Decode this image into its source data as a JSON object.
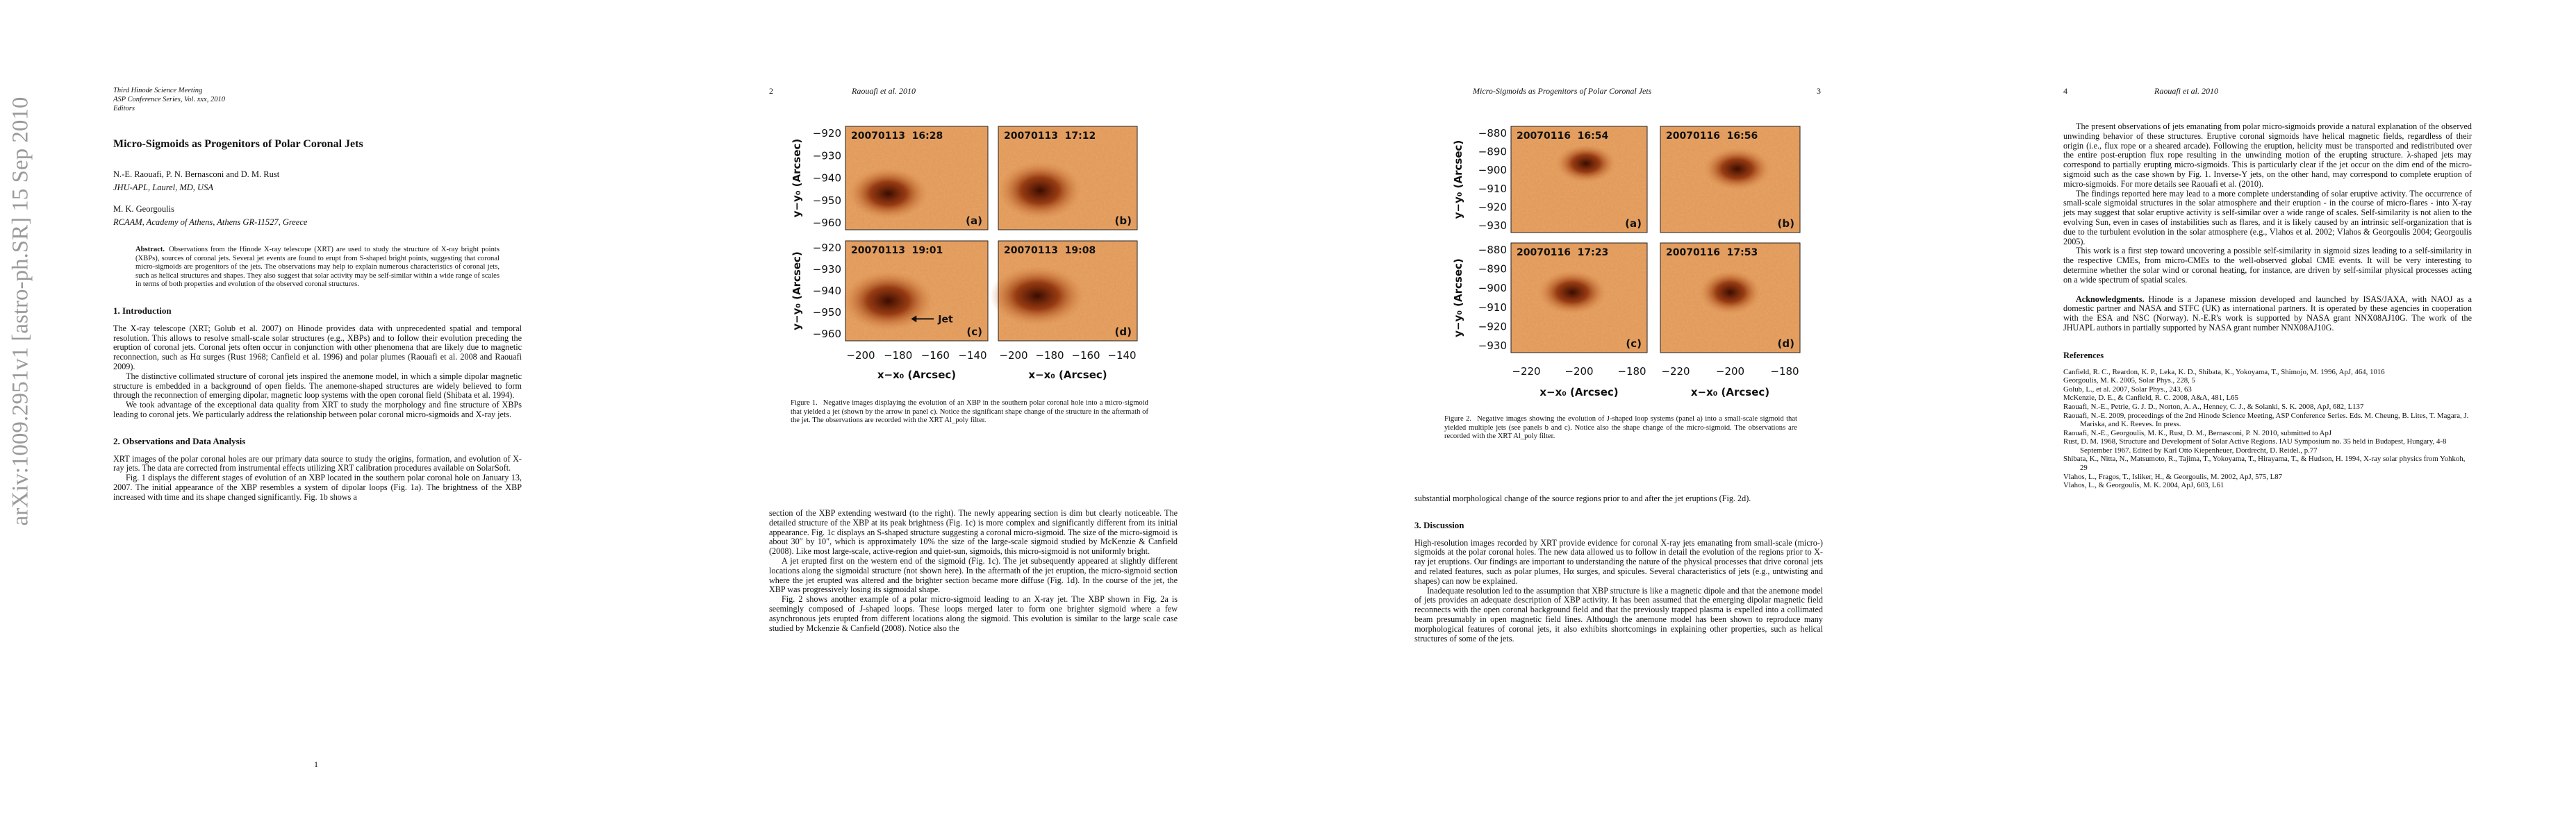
{
  "stamp": "arXiv:1009.2951v1  [astro-ph.SR]  15 Sep 2010",
  "pages": [
    {
      "conference": [
        "Third Hinode Science Meeting",
        "ASP Conference Series, Vol. xxx, 2010",
        "Editors"
      ],
      "blocks": [
        {
          "kind": "title",
          "text": "Micro-Sigmoids as Progenitors of Polar Coronal Jets"
        },
        {
          "kind": "author",
          "text": "N.-E. Raouafi, P. N. Bernasconi and D. M. Rust"
        },
        {
          "kind": "affil",
          "text": "JHU-APL, Laurel, MD, USA"
        },
        {
          "kind": "author2",
          "text": "M. K. Georgoulis"
        },
        {
          "kind": "affil",
          "text": "RCAAM, Academy of Athens, Athens GR-11527, Greece"
        },
        {
          "kind": "abstract",
          "lead": "Abstract.",
          "text": "Observations from the Hinode X-ray telescope (XRT) are used to study the structure of X-ray bright points (XBPs), sources of coronal jets. Several jet events are found to erupt from S-shaped bright points, suggesting that coronal micro-sigmoids are progenitors of the jets. The observations may help to explain numerous characteristics of coronal jets, such as helical structures and shapes. They also suggest that solar activity may be self-similar within a wide range of scales in terms of both properties and evolution of the observed coronal structures."
        },
        {
          "kind": "h",
          "text": "1. Introduction"
        },
        {
          "kind": "p0",
          "text": "The X-ray telescope (XRT; Golub et al. 2007) on Hinode provides data with unprecedented spatial and temporal resolution. This allows to resolve small-scale solar structures (e.g., XBPs) and to follow their evolution preceding the eruption of coronal jets. Coronal jets often occur in conjunction with other phenomena that are likely due to magnetic reconnection, such as Hα surges (Rust 1968; Canfield et al. 1996) and polar plumes (Raouafi et al. 2008 and Raouafi 2009)."
        },
        {
          "kind": "p",
          "text": "The distinctive collimated structure of coronal jets inspired the anemone model, in which a simple dipolar magnetic structure is embedded in a background of open fields. The anemone-shaped structures are widely believed to form through the reconnection of emerging dipolar, magnetic loop systems with the open coronal field (Shibata et al. 1994)."
        },
        {
          "kind": "p",
          "text": "We took advantage of the exceptional data quality from XRT to study the morphology and fine structure of XBPs leading to coronal jets. We particularly address the relationship between polar coronal micro-sigmoids and X-ray jets."
        },
        {
          "kind": "h",
          "text": "2. Observations and Data Analysis"
        },
        {
          "kind": "p0",
          "text": "XRT images of the polar coronal holes are our primary data source to study the origins, formation, and evolution of X-ray jets. The data are corrected from instrumental effects utilizing XRT calibration procedures available on SolarSoft."
        },
        {
          "kind": "p",
          "text": "Fig. 1 displays the different stages of evolution of an XBP located in the southern polar coronal hole on January 13, 2007. The initial appearance of the XBP resembles a system of dipolar loops (Fig. 1a). The brightness of the XBP increased with time and its shape changed significantly. Fig. 1b shows a"
        }
      ],
      "footer": "1"
    },
    {
      "running_head": {
        "number": "2",
        "text": "Raouafi et al. 2010"
      },
      "figure": {
        "panels": [
          {
            "stamp": "20070113  16:28",
            "letter": "(a)"
          },
          {
            "stamp": "20070113  17:12",
            "letter": "(b)"
          },
          {
            "stamp": "20070113  19:01",
            "letter": "(c)"
          },
          {
            "stamp": "20070113  19:08",
            "letter": "(d)"
          }
        ],
        "yticks": [
          "−920",
          "−930",
          "−940",
          "−950",
          "−960"
        ],
        "xticks": [
          "−200",
          "−180",
          "−160",
          "−140"
        ],
        "ylabel": "y−y₀ (Arcsec)",
        "xlabel": "x−x₀ (Arcsec)",
        "arrow_label": "Jet",
        "caption_label": "Figure 1.",
        "caption": "Negative images displaying the evolution of an XBP in the southern polar coronal hole into a micro-sigmoid that yielded a jet (shown by the arrow in panel c). Notice the significant shape change of the structure in the aftermath of the jet. The observations are recorded with the XRT Al_poly filter."
      },
      "blocks": [
        {
          "kind": "p0",
          "text": "section of the XBP extending westward (to the right). The newly appearing section is dim but clearly noticeable. The detailed structure of the XBP at its peak brightness (Fig. 1c) is more complex and significantly different from its initial appearance. Fig. 1c displays an S-shaped structure suggesting a coronal micro-sigmoid. The size of the micro-sigmoid is about 30″ by 10″, which is approximately 10% the size of the large-scale sigmoid studied by McKenzie & Canfield (2008). Like most large-scale, active-region and quiet-sun, sigmoids, this micro-sigmoid is not uniformly bright."
        },
        {
          "kind": "p",
          "text": "A jet erupted first on the western end of the sigmoid (Fig. 1c). The jet subsequently appeared at slightly different locations along the sigmoidal structure (not shown here). In the aftermath of the jet eruption, the micro-sigmoid section where the jet erupted was altered and the brighter section became more diffuse (Fig. 1d). In the course of the jet, the XBP was progressively losing its sigmoidal shape."
        },
        {
          "kind": "p",
          "text": "Fig. 2 shows another example of a polar micro-sigmoid leading to an X-ray jet. The XBP shown in Fig. 2a is seemingly composed of J-shaped loops. These loops merged later to form one brighter sigmoid where a few asynchronous jets erupted from different locations along the sigmoid. This evolution is similar to the large scale case studied by Mckenzie & Canfield (2008). Notice also the"
        }
      ]
    },
    {
      "running_head": {
        "number": "3",
        "text": "Micro-Sigmoids as Progenitors of Polar Coronal Jets"
      },
      "figure": {
        "panels": [
          {
            "stamp": "20070116  16:54",
            "letter": "(a)"
          },
          {
            "stamp": "20070116  16:56",
            "letter": "(b)"
          },
          {
            "stamp": "20070116  17:23",
            "letter": "(c)"
          },
          {
            "stamp": "20070116  17:53",
            "letter": "(d)"
          }
        ],
        "yticks": [
          "−880",
          "−890",
          "−900",
          "−910",
          "−920",
          "−930"
        ],
        "xticks": [
          "−220",
          "−200",
          "−180"
        ],
        "ylabel": "y−y₀ (Arcsec)",
        "xlabel": "x−x₀ (Arcsec)",
        "caption_label": "Figure 2.",
        "caption": "Negative images showing the evolution of J-shaped loop systems (panel a) into a small-scale sigmoid that yielded multiple jets (see panels b and c). Notice also the shape change of the micro-sigmoid. The observations are recorded with the XRT Al_poly filter."
      },
      "blocks": [
        {
          "kind": "p0",
          "text": "substantial morphological change of the source regions prior to and after the jet eruptions (Fig. 2d)."
        },
        {
          "kind": "h",
          "text": "3. Discussion"
        },
        {
          "kind": "p0",
          "text": "High-resolution images recorded by XRT provide evidence for coronal X-ray jets emanating from small-scale (micro-) sigmoids at the polar coronal holes. The new data allowed us to follow in detail the evolution of the regions prior to X-ray jet eruptions. Our findings are important to understanding the nature of the physical processes that drive coronal jets and related features, such as polar plumes, Hα surges, and spicules. Several characteristics of jets (e.g., untwisting and shapes) can now be explained."
        },
        {
          "kind": "p",
          "text": "Inadequate resolution led to the assumption that XBP structure is like a magnetic dipole and that the anemone model of jets provides an adequate description of XBP activity. It has been assumed that the emerging dipolar magnetic field reconnects with the open coronal background field and that the previously trapped plasma is expelled into a collimated beam presumably in open magnetic field lines. Although the anemone model has been shown to reproduce many morphological features of coronal jets, it also exhibits shortcomings in explaining other properties, such as helical structures of some of the jets."
        }
      ]
    },
    {
      "running_head": {
        "number": "4",
        "text": "Raouafi et al. 2010"
      },
      "blocks": [
        {
          "kind": "p",
          "text": "The present observations of jets emanating from polar micro-sigmoids provide a natural explanation of the observed unwinding behavior of these structures. Eruptive coronal sigmoids have helical magnetic fields, regardless of their origin (i.e., flux rope or a sheared arcade). Following the eruption, helicity must be transported and redistributed over the entire post-eruption flux rope resulting in the unwinding motion of the erupting structure. λ-shaped jets may correspond to partially erupting micro-sigmoids. This is particularly clear if the jet occur on the dim end of the micro-sigmoid such as the case shown by Fig. 1. Inverse-Y jets, on the other hand, may correspond to complete eruption of micro-sigmoids. For more details see Raouafi et al. (2010)."
        },
        {
          "kind": "p",
          "text": "The findings reported here may lead to a more complete understanding of solar eruptive activity. The occurrence of small-scale sigmoidal structures in the solar atmosphere and their eruption - in the course of micro-flares - into X-ray jets may suggest that solar eruptive activity is self-similar over a wide range of scales. Self-similarity is not alien to the evolving Sun, even in cases of instabilities such as flares, and it is likely caused by an intrinsic self-organization that is due to the turbulent evolution in the solar atmosphere (e.g., Vlahos et al. 2002; Vlahos & Georgoulis 2004; Georgoulis 2005)."
        },
        {
          "kind": "p",
          "text": "This work is a first step toward uncovering a possible self-similarity in sigmoid sizes leading to a self-similarity in the respective CMEs, from micro-CMEs to the well-observed global CME events. It will be very interesting to determine whether the solar wind or coronal heating, for instance, are driven by self-similar physical processes acting on a wide spectrum of spatial scales."
        },
        {
          "kind": "ack",
          "lead": "Acknowledgments.",
          "text": "Hinode is a Japanese mission developed and launched by ISAS/JAXA, with NAOJ as a domestic partner and NASA and STFC (UK) as international partners. It is operated by these agencies in cooperation with the ESA and NSC (Norway). N.-E.R's work is supported by NASA grant NNX08AJ10G. The work of the JHUAPL authors in partially supported by NASA grant number NNX08AJ10G."
        },
        {
          "kind": "refh",
          "text": "References"
        },
        {
          "kind": "ref",
          "text": "Canfield, R. C., Reardon, K. P., Leka, K. D., Shibata, K., Yokoyama, T., Shimojo, M. 1996, ApJ, 464, 1016"
        },
        {
          "kind": "ref",
          "text": "Georgoulis, M. K. 2005, Solar Phys., 228, 5"
        },
        {
          "kind": "ref",
          "text": "Golub, L., et al. 2007, Solar Phys., 243, 63"
        },
        {
          "kind": "ref",
          "text": "McKenzie, D. E., & Canfield, R. C. 2008, A&A, 481, L65"
        },
        {
          "kind": "ref",
          "text": "Raouafi, N.-E., Petrie, G. J. D., Norton, A. A., Henney, C. J., & Solanki, S. K. 2008, ApJ, 682, L137"
        },
        {
          "kind": "ref",
          "text": "Raouafi, N.-E. 2009, proceedings of the 2nd Hinode Science Meeting, ASP Conference Series. Eds. M. Cheung, B. Lites, T. Magara, J. Mariska, and K. Reeves. In press."
        },
        {
          "kind": "ref",
          "text": "Raouafi, N.-E., Georgoulis, M. K., Rust, D. M., Bernasconi, P. N. 2010, submitted to ApJ"
        },
        {
          "kind": "ref",
          "text": "Rust, D. M. 1968, Structure and Development of Solar Active Regions. IAU Symposium no. 35 held in Budapest, Hungary, 4-8 September 1967. Edited by Karl Otto Kiepenheuer, Dordrecht, D. Reidel., p.77"
        },
        {
          "kind": "ref",
          "text": "Shibata, K., Nitta, N., Matsumoto, R., Tajima, T., Yokoyama, T., Hirayama, T., & Hudson, H. 1994, X-ray solar physics from Yohkoh, 29"
        },
        {
          "kind": "ref",
          "text": "Vlahos, L., Fragos, T., Isliker, H., & Georgoulis, M. 2002, ApJ, 575, L87"
        },
        {
          "kind": "ref",
          "text": "Vlahos, L., & Georgoulis, M. K. 2004, ApJ, 603, L61"
        }
      ]
    }
  ]
}
